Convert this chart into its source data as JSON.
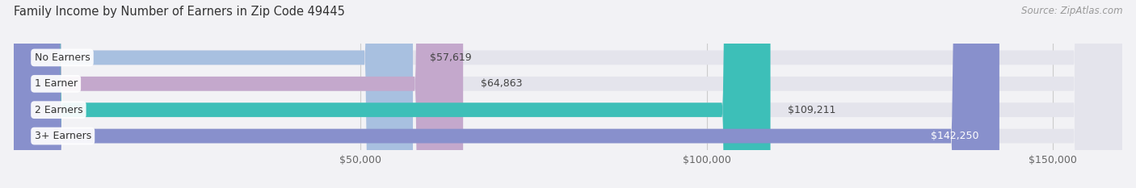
{
  "title": "Family Income by Number of Earners in Zip Code 49445",
  "source": "Source: ZipAtlas.com",
  "categories": [
    "No Earners",
    "1 Earner",
    "2 Earners",
    "3+ Earners"
  ],
  "values": [
    57619,
    64863,
    109211,
    142250
  ],
  "bar_colors": [
    "#a8c0e0",
    "#c4a8cc",
    "#3dbfb8",
    "#8890cc"
  ],
  "label_colors": [
    "#555555",
    "#555555",
    "#555555",
    "#ffffff"
  ],
  "background_color": "#f2f2f5",
  "bar_bg_color": "#e4e4ec",
  "xmin": 0,
  "xmax": 160000,
  "xticks": [
    50000,
    100000,
    150000
  ],
  "xtick_labels": [
    "$50,000",
    "$100,000",
    "$150,000"
  ],
  "figwidth": 14.06,
  "figheight": 2.33
}
